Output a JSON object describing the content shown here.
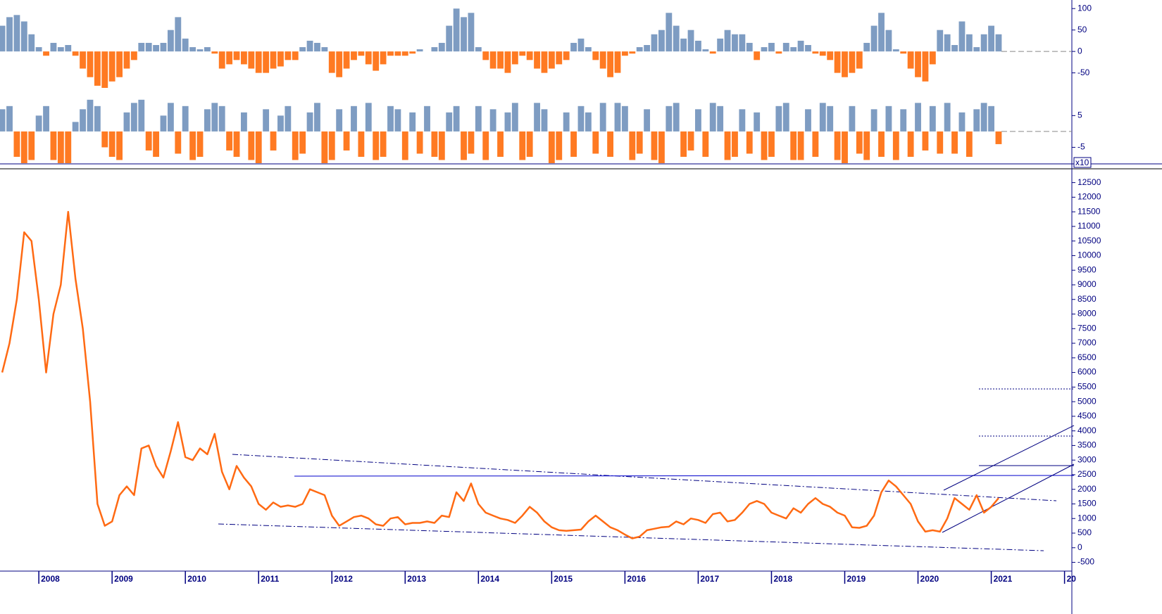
{
  "chart_data": [
    {
      "type": "bar",
      "color": "#7e9cc2",
      "negative_color": "#ff7a22",
      "xlim": [
        2007.47,
        2022.1
      ],
      "ylim": [
        -90,
        120
      ],
      "yticks": [
        100,
        50,
        0,
        -50
      ],
      "x": [
        2007.5,
        2007.6,
        2007.7,
        2007.8,
        2007.9,
        2008,
        2008.1,
        2008.2,
        2008.3,
        2008.4,
        2008.5,
        2008.6,
        2008.7,
        2008.8,
        2008.9,
        2009,
        2009.1,
        2009.2,
        2009.3,
        2009.4,
        2009.5,
        2009.6,
        2009.7,
        2009.8,
        2009.9,
        2010,
        2010.1,
        2010.2,
        2010.3,
        2010.4,
        2010.5,
        2010.6,
        2010.7,
        2010.8,
        2010.9,
        2011,
        2011.1,
        2011.2,
        2011.3,
        2011.4,
        2011.5,
        2011.6,
        2011.7,
        2011.8,
        2011.9,
        2012,
        2012.1,
        2012.2,
        2012.3,
        2012.4,
        2012.5,
        2012.6,
        2012.7,
        2012.8,
        2012.9,
        2013,
        2013.1,
        2013.2,
        2013.3,
        2013.4,
        2013.5,
        2013.6,
        2013.7,
        2013.8,
        2013.9,
        2014,
        2014.1,
        2014.2,
        2014.3,
        2014.4,
        2014.5,
        2014.6,
        2014.7,
        2014.8,
        2014.9,
        2015,
        2015.1,
        2015.2,
        2015.3,
        2015.4,
        2015.5,
        2015.6,
        2015.7,
        2015.8,
        2015.9,
        2016,
        2016.1,
        2016.2,
        2016.3,
        2016.4,
        2016.5,
        2016.6,
        2016.7,
        2016.8,
        2016.9,
        2017,
        2017.1,
        2017.2,
        2017.3,
        2017.4,
        2017.5,
        2017.6,
        2017.7,
        2017.8,
        2017.9,
        2018,
        2018.1,
        2018.2,
        2018.3,
        2018.4,
        2018.5,
        2018.6,
        2018.7,
        2018.8,
        2018.9,
        2019,
        2019.1,
        2019.2,
        2019.3,
        2019.4,
        2019.5,
        2019.6,
        2019.7,
        2019.8,
        2019.9,
        2020,
        2020.1,
        2020.2,
        2020.3,
        2020.4,
        2020.5,
        2020.6,
        2020.7,
        2020.8,
        2020.9,
        2021,
        2021.1
      ],
      "values": [
        60,
        80,
        85,
        70,
        40,
        10,
        -10,
        20,
        10,
        15,
        -10,
        -40,
        -60,
        -80,
        -85,
        -70,
        -60,
        -40,
        -20,
        20,
        20,
        15,
        20,
        50,
        80,
        30,
        10,
        5,
        10,
        -5,
        -40,
        -30,
        -20,
        -30,
        -40,
        -50,
        -50,
        -40,
        -35,
        -20,
        -20,
        10,
        25,
        20,
        10,
        -50,
        -60,
        -40,
        -20,
        -10,
        -30,
        -45,
        -30,
        -10,
        -10,
        -10,
        -5,
        5,
        0,
        10,
        20,
        60,
        100,
        80,
        90,
        10,
        -20,
        -40,
        -40,
        -50,
        -30,
        -10,
        -20,
        -40,
        -50,
        -40,
        -30,
        -20,
        20,
        30,
        10,
        -20,
        -40,
        -60,
        -50,
        -10,
        -5,
        10,
        15,
        40,
        50,
        90,
        60,
        30,
        50,
        25,
        5,
        -5,
        30,
        50,
        40,
        40,
        20,
        -20,
        10,
        20,
        -5,
        20,
        10,
        25,
        15,
        -5,
        -10,
        -20,
        -50,
        -60,
        -50,
        -40,
        20,
        60,
        90,
        50,
        5,
        -5,
        -40,
        -60,
        -70,
        -30,
        50,
        40,
        15,
        70,
        40,
        10,
        40,
        60,
        40
      ]
    },
    {
      "type": "bar",
      "color": "#7e9cc2",
      "negative_color": "#ff7a22",
      "xlim": [
        2007.47,
        2022.1
      ],
      "ylim": [
        -10,
        10.4
      ],
      "yticks": [
        5,
        -5
      ],
      "multiplier_label": "x10",
      "x": [
        2007.5,
        2007.6,
        2007.7,
        2007.8,
        2007.9,
        2008,
        2008.1,
        2008.2,
        2008.3,
        2008.4,
        2008.5,
        2008.6,
        2008.7,
        2008.8,
        2008.9,
        2009,
        2009.1,
        2009.2,
        2009.3,
        2009.4,
        2009.5,
        2009.6,
        2009.7,
        2009.8,
        2009.9,
        2010,
        2010.1,
        2010.2,
        2010.3,
        2010.4,
        2010.5,
        2010.6,
        2010.7,
        2010.8,
        2010.9,
        2011,
        2011.1,
        2011.2,
        2011.3,
        2011.4,
        2011.5,
        2011.6,
        2011.7,
        2011.8,
        2011.9,
        2012,
        2012.1,
        2012.2,
        2012.3,
        2012.4,
        2012.5,
        2012.6,
        2012.7,
        2012.8,
        2012.9,
        2013,
        2013.1,
        2013.2,
        2013.3,
        2013.4,
        2013.5,
        2013.6,
        2013.7,
        2013.8,
        2013.9,
        2014,
        2014.1,
        2014.2,
        2014.3,
        2014.4,
        2014.5,
        2014.6,
        2014.7,
        2014.8,
        2014.9,
        2015,
        2015.1,
        2015.2,
        2015.3,
        2015.4,
        2015.5,
        2015.6,
        2015.7,
        2015.8,
        2015.9,
        2016,
        2016.1,
        2016.2,
        2016.3,
        2016.4,
        2016.5,
        2016.6,
        2016.7,
        2016.8,
        2016.9,
        2017,
        2017.1,
        2017.2,
        2017.3,
        2017.4,
        2017.5,
        2017.6,
        2017.7,
        2017.8,
        2017.9,
        2018,
        2018.1,
        2018.2,
        2018.3,
        2018.4,
        2018.5,
        2018.6,
        2018.7,
        2018.8,
        2018.9,
        2019,
        2019.1,
        2019.2,
        2019.3,
        2019.4,
        2019.5,
        2019.6,
        2019.7,
        2019.8,
        2019.9,
        2020,
        2020.1,
        2020.2,
        2020.3,
        2020.4,
        2020.5,
        2020.6,
        2020.7,
        2020.8,
        2020.9,
        2021,
        2021.1
      ],
      "values": [
        7,
        8,
        -8,
        -10,
        -9,
        5,
        8,
        -9,
        -10,
        -10,
        3,
        7,
        10,
        8,
        -5,
        -8,
        -9,
        6,
        9,
        10,
        -6,
        -8,
        5,
        9,
        -7,
        8,
        -9,
        -8,
        7,
        9,
        8,
        -6,
        -8,
        6,
        -9,
        -10,
        7,
        -6,
        5,
        8,
        -9,
        -7,
        6,
        9,
        -10,
        -9,
        7,
        -6,
        8,
        -8,
        9,
        -9,
        -8,
        8,
        7,
        -9,
        6,
        -7,
        8,
        -8,
        -9,
        6,
        8,
        -9,
        -7,
        8,
        -9,
        7,
        -8,
        6,
        9,
        -9,
        -8,
        9,
        7,
        -10,
        -9,
        6,
        -8,
        8,
        6,
        -7,
        9,
        -8,
        9,
        8,
        -9,
        -7,
        7,
        -9,
        -10,
        8,
        9,
        -8,
        -6,
        7,
        -8,
        9,
        8,
        -9,
        -8,
        7,
        -7,
        6,
        -9,
        -8,
        8,
        9,
        -9,
        -9,
        7,
        -8,
        9,
        8,
        -9,
        -10,
        8,
        -7,
        -9,
        7,
        -8,
        8,
        -9,
        7,
        -8,
        9,
        -6,
        8,
        -7,
        9,
        -7,
        6,
        -8,
        7,
        9,
        8,
        -4
      ]
    },
    {
      "type": "line",
      "color": "#ff6a13",
      "xlim": [
        2007.47,
        2022.1
      ],
      "ylim": [
        -800,
        12900
      ],
      "xticks": [
        2008,
        2009,
        2010,
        2011,
        2012,
        2013,
        2014,
        2015,
        2016,
        2017,
        2018,
        2019,
        2020,
        2021,
        {
          "value": 2022,
          "label": "20"
        }
      ],
      "yticks": [
        12500,
        12000,
        11500,
        11000,
        10500,
        10000,
        9500,
        9000,
        8500,
        8000,
        7500,
        7000,
        6500,
        6000,
        5500,
        5000,
        4500,
        4000,
        3500,
        3000,
        2500,
        2000,
        1500,
        1000,
        500,
        0,
        -500
      ],
      "x": [
        2007.5,
        2007.6,
        2007.7,
        2007.8,
        2007.9,
        2008,
        2008.1,
        2008.2,
        2008.3,
        2008.4,
        2008.5,
        2008.6,
        2008.7,
        2008.8,
        2008.9,
        2009,
        2009.1,
        2009.2,
        2009.3,
        2009.4,
        2009.5,
        2009.6,
        2009.7,
        2009.8,
        2009.9,
        2010,
        2010.1,
        2010.2,
        2010.3,
        2010.4,
        2010.5,
        2010.6,
        2010.7,
        2010.8,
        2010.9,
        2011,
        2011.1,
        2011.2,
        2011.3,
        2011.4,
        2011.5,
        2011.6,
        2011.7,
        2011.8,
        2011.9,
        2012,
        2012.1,
        2012.2,
        2012.3,
        2012.4,
        2012.5,
        2012.6,
        2012.7,
        2012.8,
        2012.9,
        2013,
        2013.1,
        2013.2,
        2013.3,
        2013.4,
        2013.5,
        2013.6,
        2013.7,
        2013.8,
        2013.9,
        2014,
        2014.1,
        2014.2,
        2014.3,
        2014.4,
        2014.5,
        2014.6,
        2014.7,
        2014.8,
        2014.9,
        2015,
        2015.1,
        2015.2,
        2015.3,
        2015.4,
        2015.5,
        2015.6,
        2015.7,
        2015.8,
        2015.9,
        2016,
        2016.1,
        2016.2,
        2016.3,
        2016.4,
        2016.5,
        2016.6,
        2016.7,
        2016.8,
        2016.9,
        2017,
        2017.1,
        2017.2,
        2017.3,
        2017.4,
        2017.5,
        2017.6,
        2017.7,
        2017.8,
        2017.9,
        2018,
        2018.1,
        2018.2,
        2018.3,
        2018.4,
        2018.5,
        2018.6,
        2018.7,
        2018.8,
        2018.9,
        2019,
        2019.1,
        2019.2,
        2019.3,
        2019.4,
        2019.5,
        2019.6,
        2019.7,
        2019.8,
        2019.9,
        2020,
        2020.1,
        2020.2,
        2020.3,
        2020.4,
        2020.5,
        2020.6,
        2020.7,
        2020.8,
        2020.9,
        2021,
        2021.1
      ],
      "values": [
        6000,
        7000,
        8500,
        10800,
        10500,
        8500,
        6000,
        8000,
        9000,
        11500,
        9200,
        7500,
        5000,
        1500,
        750,
        900,
        1800,
        2100,
        1800,
        3400,
        3500,
        2800,
        2400,
        3300,
        4300,
        3100,
        3000,
        3400,
        3200,
        3900,
        2600,
        2000,
        2800,
        2400,
        2100,
        1500,
        1300,
        1550,
        1400,
        1450,
        1400,
        1500,
        2000,
        1900,
        1800,
        1100,
        750,
        900,
        1050,
        1100,
        1000,
        800,
        750,
        1000,
        1050,
        800,
        850,
        850,
        900,
        850,
        1100,
        1050,
        1900,
        1600,
        2200,
        1500,
        1200,
        1100,
        1000,
        950,
        850,
        1100,
        1400,
        1200,
        900,
        700,
        600,
        580,
        600,
        620,
        900,
        1100,
        900,
        700,
        600,
        450,
        320,
        380,
        600,
        650,
        700,
        720,
        900,
        800,
        1000,
        950,
        850,
        1150,
        1200,
        900,
        950,
        1200,
        1500,
        1600,
        1500,
        1200,
        1100,
        1000,
        1350,
        1200,
        1500,
        1700,
        1500,
        1400,
        1200,
        1100,
        700,
        680,
        750,
        1100,
        1900,
        2300,
        2100,
        1800,
        1500,
        900,
        550,
        600,
        550,
        1000,
        1700,
        1500,
        1300,
        1800,
        1200,
        1400,
        1700
      ]
    }
  ]
}
